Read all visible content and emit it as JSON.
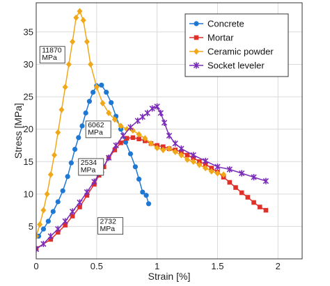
{
  "chart_data": {
    "type": "line",
    "xlabel": "Strain [%]",
    "ylabel": "Stress [MPa]",
    "xlim": [
      0,
      2.2
    ],
    "ylim": [
      0,
      39.5
    ],
    "xticks": [
      0,
      0.5,
      1,
      1.5,
      2
    ],
    "xtick_labels": [
      "0",
      "0.5",
      "1",
      "1.5",
      "2"
    ],
    "yticks": [
      5,
      10,
      15,
      20,
      25,
      30,
      35
    ],
    "ytick_labels": [
      "5",
      "10",
      "15",
      "20",
      "25",
      "30",
      "35"
    ],
    "grid": true,
    "legend_position": "top-right",
    "series": [
      {
        "name": "Concrete",
        "color": "#1f77d4",
        "marker": "circle",
        "x": [
          0.02,
          0.06,
          0.1,
          0.14,
          0.18,
          0.22,
          0.26,
          0.29,
          0.32,
          0.35,
          0.38,
          0.41,
          0.44,
          0.47,
          0.5,
          0.54,
          0.58,
          0.62,
          0.66,
          0.7,
          0.74,
          0.78,
          0.82,
          0.85,
          0.88,
          0.91,
          0.93
        ],
        "y": [
          3.5,
          4.6,
          5.8,
          7.3,
          8.8,
          10.5,
          12.7,
          14.8,
          16.9,
          18.7,
          20.5,
          22.5,
          24.3,
          25.7,
          26.7,
          26.8,
          25.7,
          24.1,
          22.0,
          20.0,
          18.0,
          16.2,
          14.2,
          12.3,
          10.3,
          9.8,
          8.5
        ]
      },
      {
        "name": "Mortar",
        "color": "#e0302a",
        "marker": "square",
        "x": [
          0,
          0.12,
          0.18,
          0.24,
          0.3,
          0.36,
          0.42,
          0.48,
          0.52,
          0.56,
          0.6,
          0.65,
          0.7,
          0.75,
          0.8,
          0.85,
          0.9,
          0.95,
          1.0,
          1.05,
          1.1,
          1.15,
          1.2,
          1.25,
          1.3,
          1.35,
          1.4,
          1.45,
          1.5,
          1.55,
          1.6,
          1.65,
          1.7,
          1.75,
          1.8,
          1.85,
          1.9
        ],
        "y": [
          1.6,
          3.0,
          4.1,
          5.2,
          6.6,
          8.0,
          9.8,
          11.5,
          12.9,
          14.2,
          15.6,
          16.8,
          17.9,
          18.6,
          18.7,
          18.5,
          18.2,
          17.8,
          17.5,
          17.3,
          17.0,
          16.8,
          16.5,
          16.0,
          15.6,
          15.0,
          14.6,
          14.0,
          13.4,
          12.6,
          11.8,
          11.0,
          10.2,
          9.5,
          8.7,
          8.0,
          7.5
        ]
      },
      {
        "name": "Ceramic powder",
        "color": "#f0a818",
        "marker": "diamond",
        "x": [
          0,
          0.03,
          0.06,
          0.09,
          0.12,
          0.15,
          0.18,
          0.21,
          0.24,
          0.27,
          0.3,
          0.33,
          0.36,
          0.39,
          0.42,
          0.45,
          0.5,
          0.55,
          0.6,
          0.65,
          0.7,
          0.75,
          0.8,
          0.85,
          0.9,
          0.95,
          1.0,
          1.05,
          1.1,
          1.15,
          1.2,
          1.25,
          1.3,
          1.35,
          1.4,
          1.45,
          1.5,
          1.55
        ],
        "y": [
          3.5,
          5.3,
          7.5,
          10.0,
          13.0,
          16.0,
          19.5,
          23.0,
          26.5,
          30.0,
          33.5,
          37.2,
          38.2,
          36.8,
          33.5,
          30.0,
          26.5,
          24.0,
          22.5,
          21.5,
          20.5,
          20.0,
          19.8,
          19.2,
          18.6,
          17.8,
          17.1,
          16.8,
          17.0,
          16.5,
          16.0,
          15.3,
          15.0,
          14.5,
          14.0,
          13.5,
          13.2,
          13.0
        ]
      },
      {
        "name": "Socket leveler",
        "color": "#7a2bb8",
        "marker": "star",
        "x": [
          0,
          0.06,
          0.12,
          0.18,
          0.24,
          0.3,
          0.36,
          0.42,
          0.48,
          0.54,
          0.6,
          0.66,
          0.72,
          0.78,
          0.84,
          0.88,
          0.92,
          0.96,
          1.0,
          1.03,
          1.06,
          1.1,
          1.15,
          1.2,
          1.3,
          1.4,
          1.5,
          1.6,
          1.7,
          1.8,
          1.9
        ],
        "y": [
          1.5,
          2.3,
          3.5,
          4.6,
          5.8,
          7.3,
          8.7,
          10.3,
          11.9,
          13.7,
          15.6,
          17.5,
          19.0,
          20.3,
          21.3,
          21.9,
          22.5,
          23.2,
          23.5,
          22.5,
          21.0,
          19.0,
          17.8,
          17.0,
          16.0,
          15.1,
          14.2,
          13.8,
          13.2,
          12.6,
          12.0
        ]
      }
    ],
    "annotations": [
      {
        "lines": [
          "11870",
          "MPa"
        ],
        "x": 0.03,
        "y": 31.8
      },
      {
        "lines": [
          "6062",
          "MPa"
        ],
        "x": 0.41,
        "y": 20.3
      },
      {
        "lines": [
          "2534",
          "MPa"
        ],
        "x": 0.35,
        "y": 14.5
      },
      {
        "lines": [
          "2732",
          "MPa"
        ],
        "x": 0.51,
        "y": 5.4
      }
    ]
  }
}
